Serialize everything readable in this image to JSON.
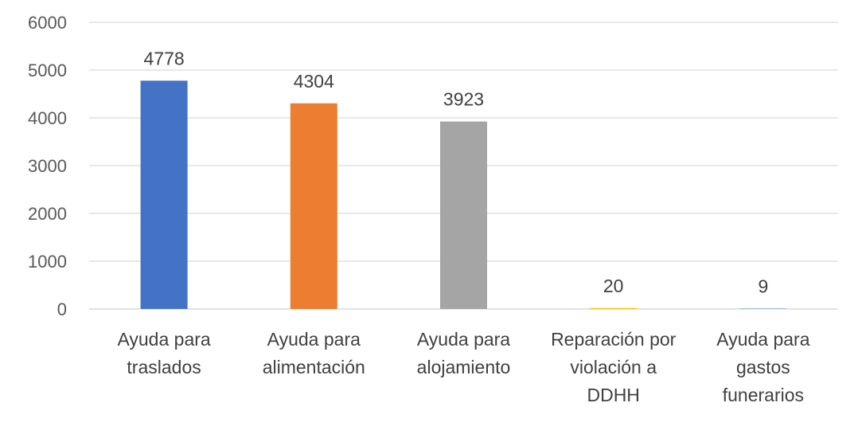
{
  "chart_data": {
    "type": "bar",
    "title": "",
    "xlabel": "",
    "ylabel": "",
    "ylim": [
      0,
      6000
    ],
    "yticks": [
      0,
      1000,
      2000,
      3000,
      4000,
      5000,
      6000
    ],
    "grid": true,
    "legend": "none",
    "categories": [
      [
        "Ayuda para",
        "traslados"
      ],
      [
        "Ayuda para",
        "alimentación"
      ],
      [
        "Ayuda para",
        "alojamiento"
      ],
      [
        "Reparación por",
        "violación a",
        "DDHH"
      ],
      [
        "Ayuda para",
        "gastos",
        "funerarios"
      ]
    ],
    "values": [
      4778,
      4304,
      3923,
      20,
      9
    ],
    "colors": [
      "#4472c4",
      "#ed7d31",
      "#a5a5a5",
      "#ffc000",
      "#5b9bd5"
    ]
  }
}
